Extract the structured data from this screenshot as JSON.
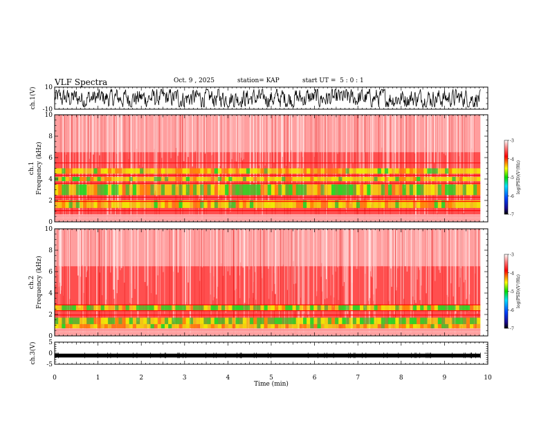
{
  "header": {
    "title": "VLF Spectra",
    "date": "Oct. 9 , 2025",
    "station": "station= KAP",
    "start": "start UT =  5 : 0 : 1"
  },
  "chart_data": [
    {
      "type": "line",
      "panel": "ch1-waveform",
      "ylabel": "ch.1(V)",
      "ylim": [
        -10,
        10
      ],
      "yticks": [
        "10",
        "-10"
      ],
      "description_series": "broadband waveform, amplitude roughly -8..8 V"
    },
    {
      "type": "heatmap",
      "panel": "ch1-spectrogram",
      "ylabel_line1": "ch.1",
      "ylabel_line2": "Frequency  (kHz)",
      "ylim": [
        0,
        10
      ],
      "yticks": [
        "0",
        "2",
        "4",
        "6",
        "8",
        "10"
      ],
      "colorbar": {
        "label": "log(PSD)(V²/Hz)",
        "ticks": [
          "-3",
          "-4",
          "-5",
          "-6",
          "-7"
        ],
        "range": [
          -7,
          -3
        ]
      }
    },
    {
      "type": "heatmap",
      "panel": "ch2-spectrogram",
      "ylabel_line1": "ch.2",
      "ylabel_line2": "Frequency  (kHz)",
      "ylim": [
        0,
        10
      ],
      "yticks": [
        "0",
        "2",
        "4",
        "6",
        "8",
        "10"
      ],
      "colorbar": {
        "label": "log(PSD)(V²/Hz)",
        "ticks": [
          "-3",
          "-4",
          "-5",
          "-6",
          "-7"
        ],
        "range": [
          -7,
          -3
        ]
      }
    },
    {
      "type": "line",
      "panel": "ch3-waveform",
      "ylabel": "ch.3(V)",
      "ylim": [
        -5,
        5
      ],
      "yticks": [
        "5",
        "0",
        "-5"
      ]
    }
  ],
  "xaxis": {
    "label": "Time  (min)",
    "range": [
      0,
      10
    ],
    "ticks": [
      "0",
      "1",
      "2",
      "3",
      "4",
      "5",
      "6",
      "7",
      "8",
      "9",
      "10"
    ],
    "data_end": 9.83
  },
  "colors": {
    "axis": "#000000",
    "background": "#ffffff"
  }
}
